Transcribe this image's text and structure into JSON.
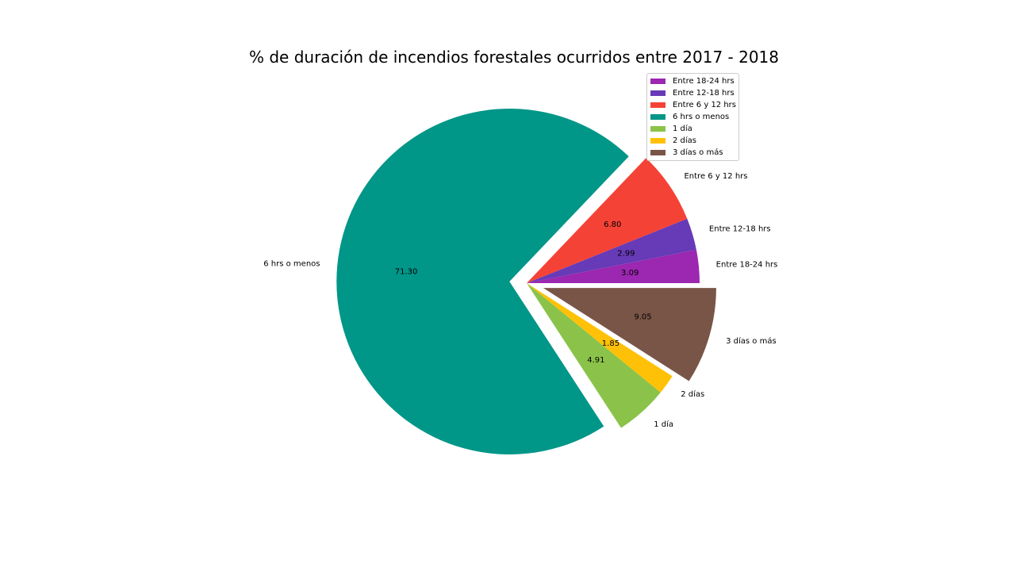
{
  "chart_data": {
    "type": "pie",
    "title": "% de duración de incendios forestales ocurridos entre 2017 - 2018",
    "legend_position": "top-right",
    "slices": [
      {
        "label": "Entre 18-24 hrs",
        "value": 3.09,
        "value_label": "3.09",
        "color": "#9c27b0",
        "exploded": false
      },
      {
        "label": "Entre 12-18 hrs",
        "value": 2.99,
        "value_label": "2.99",
        "color": "#673ab7",
        "exploded": false
      },
      {
        "label": "Entre 6 y 12 hrs",
        "value": 6.8,
        "value_label": "6.80",
        "color": "#f44336",
        "exploded": false
      },
      {
        "label": "6 hrs o menos",
        "value": 71.3,
        "value_label": "71.30",
        "color": "#009688",
        "exploded": true
      },
      {
        "label": "1 día",
        "value": 4.91,
        "value_label": "4.91",
        "color": "#8bc34a",
        "exploded": false
      },
      {
        "label": "2 días",
        "value": 1.85,
        "value_label": "1.85",
        "color": "#ffc107",
        "exploded": false
      },
      {
        "label": "3 días o más",
        "value": 9.05,
        "value_label": "9.05",
        "color": "#795548",
        "exploded": true
      }
    ]
  }
}
